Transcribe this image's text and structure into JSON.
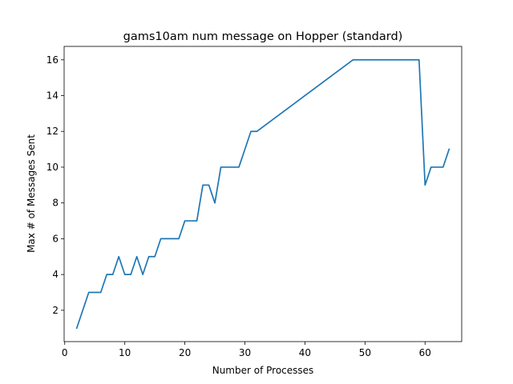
{
  "chart_data": {
    "type": "line",
    "title": "gams10am num message on Hopper (standard)",
    "xlabel": "Number of Processes",
    "ylabel": "Max # of Messages Sent",
    "xlim": [
      -0.1,
      66.1
    ],
    "ylim": [
      0.25,
      16.75
    ],
    "xticks": [
      0,
      10,
      20,
      30,
      40,
      50,
      60
    ],
    "yticks": [
      2,
      4,
      6,
      8,
      10,
      12,
      14,
      16
    ],
    "grid": false,
    "series": [
      {
        "color": "#1f77b4",
        "x": [
          2,
          3,
          4,
          5,
          6,
          7,
          8,
          9,
          10,
          11,
          12,
          13,
          14,
          15,
          16,
          17,
          18,
          19,
          20,
          21,
          22,
          23,
          24,
          25,
          26,
          27,
          28,
          29,
          30,
          31,
          32,
          48,
          59,
          60,
          61,
          62,
          63,
          64
        ],
        "y": [
          1,
          2,
          3,
          3,
          3,
          4,
          4,
          5,
          4,
          4,
          5,
          4,
          5,
          5,
          6,
          6,
          6,
          6,
          7,
          7,
          7,
          9,
          9,
          8,
          10,
          10,
          10,
          10,
          11,
          12,
          12,
          16,
          16,
          9,
          10,
          10,
          10,
          11
        ]
      }
    ]
  }
}
